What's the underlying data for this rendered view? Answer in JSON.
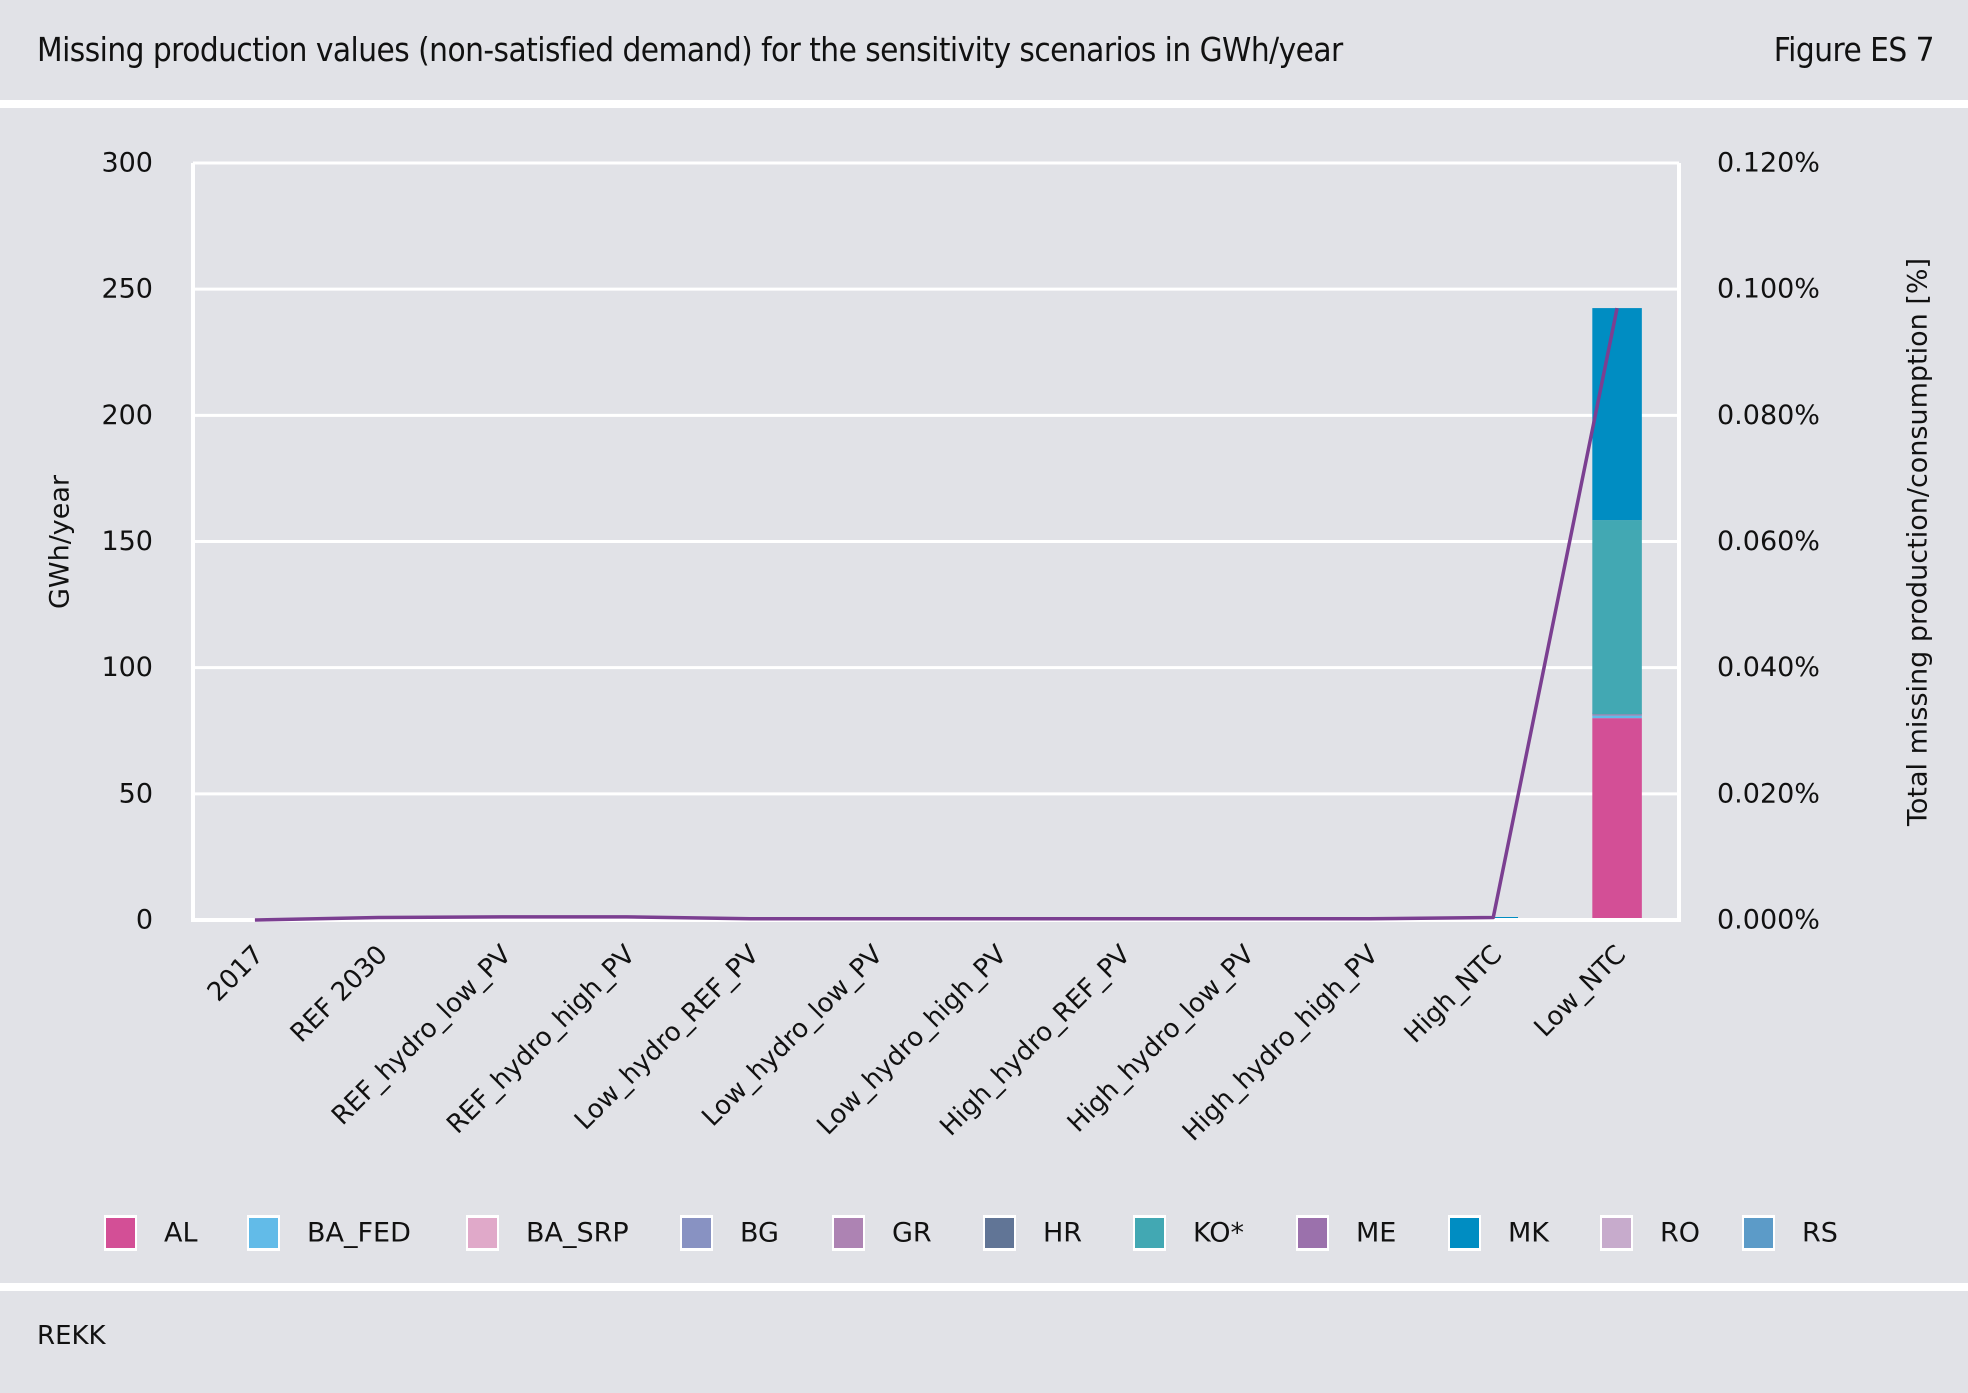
{
  "header": {
    "title": "Missing production values (non-satisfied demand) for the sensitivity scenarios in GWh/year",
    "figure_label": "Figure ES 7"
  },
  "footer": {
    "source": "REKK"
  },
  "chart_data": {
    "type": "bar",
    "stacked": true,
    "title": "Missing production values (non-satisfied demand) for the sensitivity scenarios in GWh/year",
    "xlabel": "",
    "ylabel": "GWh/year",
    "y2label": "Total missing production/consumption [%]",
    "ylim": [
      0,
      300
    ],
    "yticks": [
      "0",
      "50",
      "100",
      "150",
      "200",
      "250",
      "300"
    ],
    "y2lim": [
      0,
      0.12
    ],
    "y2ticks": [
      "0.000%",
      "0.020%",
      "0.040%",
      "0.060%",
      "0.080%",
      "0.100%",
      "0.120%"
    ],
    "grid": true,
    "legend_position": "bottom",
    "categories": [
      "2017",
      "REF 2030",
      "REF_hydro_low_PV",
      "REF_hydro_high_PV",
      "Low_hydro_REF_PV",
      "Low_hydro_low_PV",
      "Low_hydro_high_PV",
      "High_hydro_REF_PV",
      "High_hydro_low_PV",
      "High_hydro_high_PV",
      "High_NTC",
      "Low_NTC"
    ],
    "series": [
      {
        "name": "AL",
        "color": "#d34f96",
        "values": [
          0,
          0,
          0,
          0.5,
          0,
          0,
          0,
          0,
          0,
          0,
          0,
          80
        ]
      },
      {
        "name": "BA_FED",
        "color": "#62bbe8",
        "values": [
          0,
          0,
          0,
          0,
          0,
          0,
          0,
          0,
          0,
          0,
          0,
          1
        ]
      },
      {
        "name": "BA_SRP",
        "color": "#e0a9c9",
        "values": [
          0,
          0,
          0,
          0,
          0,
          0,
          0,
          0,
          0,
          0,
          0,
          0
        ]
      },
      {
        "name": "BG",
        "color": "#8892c2",
        "values": [
          0,
          0,
          0,
          0,
          0,
          0,
          0,
          0,
          0,
          0,
          0,
          0
        ]
      },
      {
        "name": "GR",
        "color": "#ad83b3",
        "values": [
          0,
          0,
          0,
          0,
          0,
          0,
          0,
          0,
          0,
          0,
          0,
          0.5
        ]
      },
      {
        "name": "HR",
        "color": "#617596",
        "values": [
          0,
          0,
          0,
          0,
          0,
          0,
          0,
          0,
          0,
          0,
          0,
          0
        ]
      },
      {
        "name": "KO*",
        "color": "#42a8b3",
        "values": [
          0,
          0,
          0.3,
          0.8,
          0,
          0,
          0,
          0,
          0,
          0,
          0,
          77
        ]
      },
      {
        "name": "ME",
        "color": "#9b71ac",
        "values": [
          0,
          0,
          0,
          0,
          0,
          0,
          0,
          0,
          0,
          0,
          0,
          0
        ]
      },
      {
        "name": "MK",
        "color": "#008dc2",
        "values": [
          0,
          1,
          1,
          0,
          0,
          0,
          0,
          0,
          0,
          0,
          1,
          84
        ]
      },
      {
        "name": "RO",
        "color": "#c7abcc",
        "values": [
          0,
          0,
          0,
          0,
          0,
          0,
          0,
          0,
          0,
          0,
          0,
          0
        ]
      },
      {
        "name": "RS",
        "color": "#5c9bc8",
        "values": [
          0,
          0,
          0,
          0,
          0,
          0,
          0,
          0,
          0,
          0,
          0,
          0
        ]
      }
    ],
    "line_series": {
      "name": "Total missing production/consumption",
      "axis": "right",
      "color": "#7b3f91",
      "values_percent": [
        0.0,
        0.0004,
        0.0005,
        0.0005,
        0.0002,
        0.0002,
        0.0002,
        0.0002,
        0.0002,
        0.0002,
        0.0004,
        0.097
      ]
    }
  }
}
